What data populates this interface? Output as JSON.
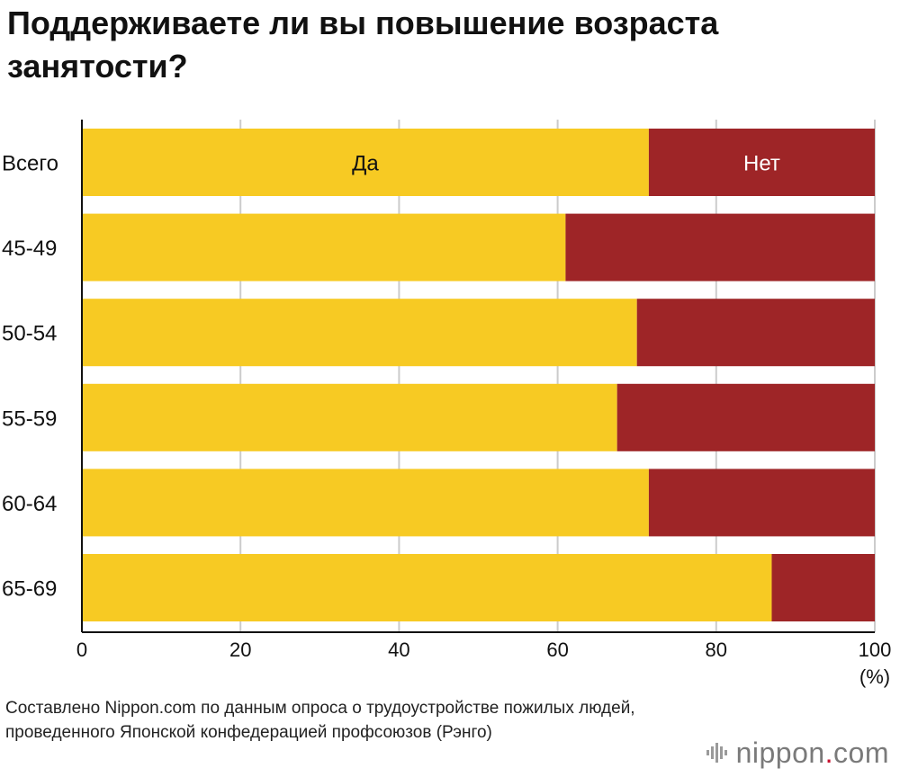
{
  "title": "Поддерживаете ли вы повышение возраста занятости?",
  "source_note": "Составлено Nippon.com по данным опроса о трудоустройстве пожилых людей, проведенного Японской конфедерацией профсоюзов (Рэнго)",
  "logo": {
    "name": "nippon",
    "dot": ".",
    "suffix": "com"
  },
  "colors": {
    "yes": "#F7CA23",
    "no": "#9E2527",
    "grid": "#cccccc",
    "axis": "#111111"
  },
  "chart_data": {
    "type": "bar",
    "orientation": "horizontal",
    "stacked": true,
    "title": "Поддерживаете ли вы повышение возраста занятости?",
    "categories": [
      "Всего",
      "45-49",
      "50-54",
      "55-59",
      "60-64",
      "65-69"
    ],
    "series": [
      {
        "name": "Да",
        "values": [
          71.5,
          61,
          70,
          67.5,
          71.5,
          87
        ]
      },
      {
        "name": "Нет",
        "values": [
          28.5,
          39,
          30,
          32.5,
          28.5,
          13
        ]
      }
    ],
    "series_labels_shown_on_first_bar": [
      "Да",
      "Нет"
    ],
    "xlim": [
      0,
      100
    ],
    "xticks": [
      0,
      20,
      40,
      60,
      80,
      100
    ],
    "xlabel": "(%)",
    "ylabel": "",
    "grid": true
  }
}
